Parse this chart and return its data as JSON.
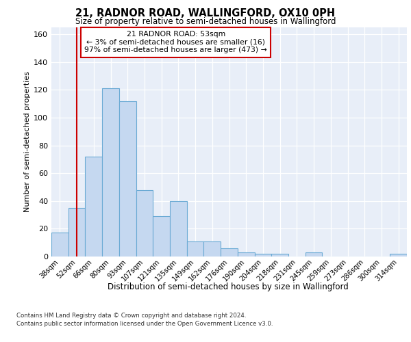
{
  "title": "21, RADNOR ROAD, WALLINGFORD, OX10 0PH",
  "subtitle": "Size of property relative to semi-detached houses in Wallingford",
  "xlabel": "Distribution of semi-detached houses by size in Wallingford",
  "ylabel": "Number of semi-detached properties",
  "bar_labels": [
    "38sqm",
    "52sqm",
    "66sqm",
    "80sqm",
    "93sqm",
    "107sqm",
    "121sqm",
    "135sqm",
    "149sqm",
    "162sqm",
    "176sqm",
    "190sqm",
    "204sqm",
    "218sqm",
    "231sqm",
    "245sqm",
    "259sqm",
    "273sqm",
    "286sqm",
    "300sqm",
    "314sqm"
  ],
  "bar_values": [
    17,
    35,
    72,
    121,
    112,
    48,
    29,
    40,
    11,
    11,
    6,
    3,
    2,
    2,
    0,
    3,
    0,
    0,
    0,
    0,
    2
  ],
  "bar_color": "#c5d8f0",
  "bar_edge_color": "#6aaad4",
  "highlight_bar_index": 1,
  "highlight_line_color": "#cc0000",
  "ylim": [
    0,
    165
  ],
  "yticks": [
    0,
    20,
    40,
    60,
    80,
    100,
    120,
    140,
    160
  ],
  "annotation_title": "21 RADNOR ROAD: 53sqm",
  "annotation_line1": "← 3% of semi-detached houses are smaller (16)",
  "annotation_line2": "97% of semi-detached houses are larger (473) →",
  "annotation_box_color": "#ffffff",
  "annotation_border_color": "#cc0000",
  "footer_line1": "Contains HM Land Registry data © Crown copyright and database right 2024.",
  "footer_line2": "Contains public sector information licensed under the Open Government Licence v3.0.",
  "background_color": "#e8eef8",
  "grid_color": "#ffffff",
  "fig_bg_color": "#ffffff"
}
